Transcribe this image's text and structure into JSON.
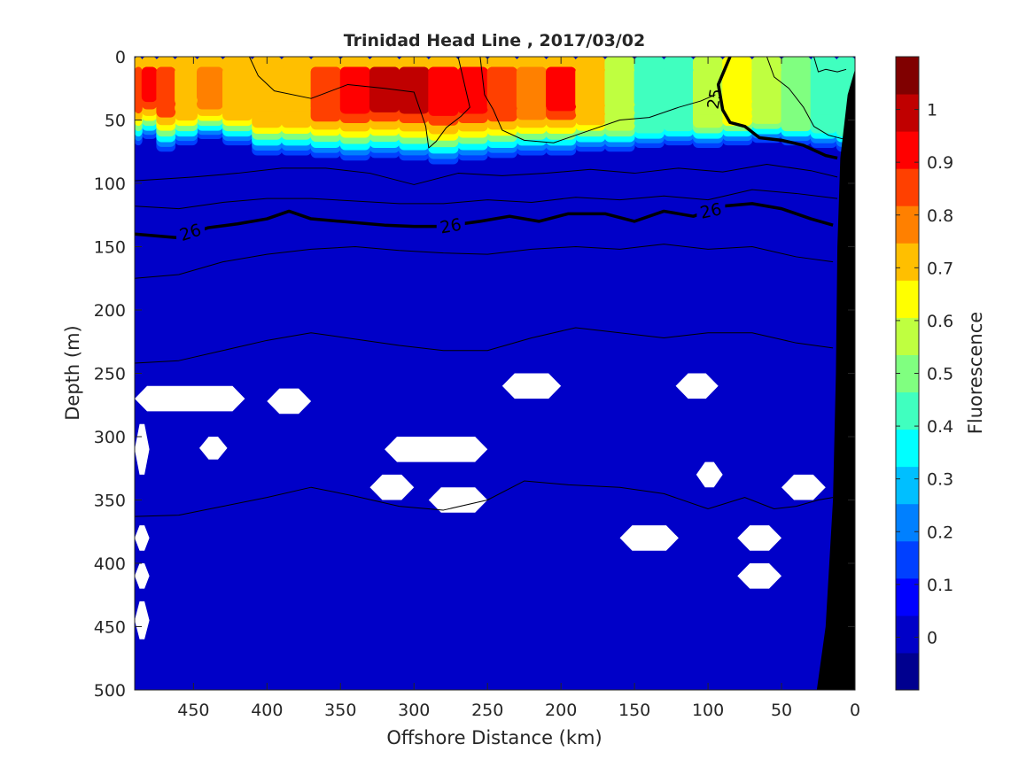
{
  "chart_data": {
    "type": "heatmap",
    "title": "Trinidad Head Line , 2017/03/02",
    "xlabel": "Offshore Distance (km)",
    "ylabel": "Depth (m)",
    "colorbar_label": "Fluorescence",
    "xlim": [
      490,
      0
    ],
    "ylim": [
      0,
      500
    ],
    "x_reversed": true,
    "y_reversed": true,
    "x_ticks": [
      "450",
      "400",
      "350",
      "300",
      "250",
      "200",
      "150",
      "100",
      "50",
      "0"
    ],
    "x_tick_values": [
      450,
      400,
      350,
      300,
      250,
      200,
      150,
      100,
      50,
      0
    ],
    "y_ticks": [
      "0",
      "50",
      "100",
      "150",
      "200",
      "250",
      "300",
      "350",
      "400",
      "450",
      "500"
    ],
    "y_tick_values": [
      0,
      50,
      100,
      150,
      200,
      250,
      300,
      350,
      400,
      450,
      500
    ],
    "colorbar_ticks": [
      "0",
      "0.1",
      "0.2",
      "0.3",
      "0.4",
      "0.5",
      "0.6",
      "0.7",
      "0.8",
      "0.9",
      "1"
    ],
    "colorbar_tick_values": [
      0,
      0.1,
      0.2,
      0.3,
      0.4,
      0.5,
      0.6,
      0.7,
      0.8,
      0.9,
      1
    ],
    "colorbar_range": [
      -0.1,
      1.1
    ],
    "colormap": [
      "#00008f",
      "#0000c8",
      "#0000ff",
      "#0040ff",
      "#0080ff",
      "#00bfff",
      "#00ffff",
      "#40ffbf",
      "#80ff80",
      "#bfff40",
      "#ffff00",
      "#ffbf00",
      "#ff8000",
      "#ff4000",
      "#ff0000",
      "#c00000",
      "#800000"
    ],
    "background_value": 0.03,
    "surface_layer": {
      "x": [
        490,
        480,
        470,
        455,
        440,
        420,
        400,
        380,
        360,
        340,
        320,
        300,
        280,
        260,
        240,
        220,
        200,
        180,
        160,
        140,
        120,
        100,
        80,
        60,
        40,
        20,
        5
      ],
      "values": [
        0.82,
        0.92,
        0.82,
        0.7,
        0.75,
        0.7,
        0.68,
        0.72,
        0.85,
        0.95,
        0.98,
        0.96,
        0.94,
        0.9,
        0.82,
        0.8,
        0.92,
        0.72,
        0.55,
        0.45,
        0.42,
        0.58,
        0.62,
        0.55,
        0.48,
        0.42,
        0.4
      ],
      "bottom_depth": [
        70,
        65,
        75,
        70,
        65,
        70,
        78,
        78,
        80,
        82,
        80,
        82,
        85,
        82,
        80,
        78,
        78,
        75,
        75,
        72,
        70,
        72,
        70,
        68,
        70,
        72,
        75
      ]
    },
    "density_contours": [
      {
        "label": "25",
        "bold": true,
        "points": [
          [
            85,
            0
          ],
          [
            93,
            22
          ],
          [
            90,
            42
          ],
          [
            85,
            52
          ],
          [
            75,
            55
          ],
          [
            65,
            64
          ],
          [
            50,
            66
          ],
          [
            35,
            70
          ],
          [
            20,
            78
          ],
          [
            12,
            80
          ]
        ]
      },
      {
        "label": "26",
        "bold": true,
        "points": [
          [
            490,
            140
          ],
          [
            460,
            143
          ],
          [
            440,
            135
          ],
          [
            420,
            132
          ],
          [
            400,
            128
          ],
          [
            385,
            122
          ],
          [
            370,
            128
          ],
          [
            350,
            130
          ],
          [
            320,
            133
          ],
          [
            300,
            134
          ],
          [
            280,
            134
          ],
          [
            255,
            130
          ],
          [
            235,
            126
          ],
          [
            215,
            130
          ],
          [
            195,
            124
          ],
          [
            170,
            124
          ],
          [
            150,
            130
          ],
          [
            130,
            122
          ],
          [
            110,
            126
          ],
          [
            90,
            118
          ],
          [
            70,
            116
          ],
          [
            50,
            120
          ],
          [
            30,
            128
          ],
          [
            15,
            133
          ]
        ]
      },
      {
        "label": "",
        "bold": false,
        "points": [
          [
            490,
            98
          ],
          [
            450,
            95
          ],
          [
            420,
            92
          ],
          [
            390,
            88
          ],
          [
            360,
            88
          ],
          [
            330,
            92
          ],
          [
            300,
            101
          ],
          [
            270,
            92
          ],
          [
            240,
            94
          ],
          [
            210,
            92
          ],
          [
            180,
            89
          ],
          [
            150,
            92
          ],
          [
            120,
            88
          ],
          [
            90,
            91
          ],
          [
            60,
            85
          ],
          [
            30,
            90
          ],
          [
            12,
            95
          ]
        ]
      },
      {
        "label": "",
        "bold": false,
        "points": [
          [
            490,
            118
          ],
          [
            460,
            120
          ],
          [
            430,
            115
          ],
          [
            400,
            112
          ],
          [
            370,
            112
          ],
          [
            340,
            114
          ],
          [
            310,
            116
          ],
          [
            280,
            116
          ],
          [
            250,
            113
          ],
          [
            220,
            115
          ],
          [
            190,
            111
          ],
          [
            160,
            113
          ],
          [
            130,
            110
          ],
          [
            100,
            113
          ],
          [
            70,
            105
          ],
          [
            40,
            108
          ],
          [
            12,
            112
          ]
        ]
      },
      {
        "label": "",
        "bold": false,
        "points": [
          [
            490,
            175
          ],
          [
            460,
            172
          ],
          [
            430,
            162
          ],
          [
            400,
            156
          ],
          [
            370,
            152
          ],
          [
            340,
            150
          ],
          [
            310,
            153
          ],
          [
            280,
            155
          ],
          [
            250,
            156
          ],
          [
            220,
            152
          ],
          [
            190,
            150
          ],
          [
            160,
            152
          ],
          [
            130,
            148
          ],
          [
            100,
            152
          ],
          [
            70,
            150
          ],
          [
            40,
            158
          ],
          [
            15,
            162
          ]
        ]
      },
      {
        "label": "",
        "bold": false,
        "points": [
          [
            490,
            242
          ],
          [
            460,
            240
          ],
          [
            430,
            232
          ],
          [
            400,
            224
          ],
          [
            370,
            218
          ],
          [
            340,
            223
          ],
          [
            310,
            228
          ],
          [
            280,
            232
          ],
          [
            250,
            232
          ],
          [
            220,
            222
          ],
          [
            190,
            214
          ],
          [
            160,
            218
          ],
          [
            130,
            222
          ],
          [
            100,
            218
          ],
          [
            70,
            218
          ],
          [
            40,
            226
          ],
          [
            15,
            230
          ]
        ]
      },
      {
        "label": "",
        "bold": false,
        "points": [
          [
            490,
            363
          ],
          [
            460,
            362
          ],
          [
            430,
            355
          ],
          [
            400,
            348
          ],
          [
            370,
            340
          ],
          [
            340,
            347
          ],
          [
            310,
            355
          ],
          [
            280,
            358
          ],
          [
            250,
            350
          ],
          [
            225,
            335
          ],
          [
            195,
            338
          ],
          [
            160,
            340
          ],
          [
            130,
            345
          ],
          [
            100,
            357
          ],
          [
            75,
            348
          ],
          [
            55,
            357
          ],
          [
            40,
            355
          ],
          [
            25,
            350
          ],
          [
            15,
            348
          ]
        ]
      },
      {
        "label": "",
        "bold": false,
        "points": [
          [
            412,
            0
          ],
          [
            406,
            15
          ],
          [
            395,
            27
          ],
          [
            370,
            33
          ],
          [
            345,
            22
          ],
          [
            320,
            25
          ],
          [
            300,
            28
          ],
          [
            292,
            55
          ],
          [
            290,
            72
          ],
          [
            285,
            67
          ],
          [
            278,
            56
          ],
          [
            268,
            47
          ],
          [
            262,
            40
          ],
          [
            270,
            0
          ]
        ]
      },
      {
        "label": "",
        "bold": false,
        "points": [
          [
            255,
            0
          ],
          [
            252,
            30
          ],
          [
            246,
            42
          ],
          [
            240,
            58
          ],
          [
            225,
            66
          ],
          [
            205,
            68
          ],
          [
            180,
            58
          ],
          [
            160,
            50
          ],
          [
            140,
            48
          ],
          [
            120,
            40
          ],
          [
            105,
            35
          ],
          [
            95,
            30
          ]
        ]
      },
      {
        "label": "",
        "bold": false,
        "points": [
          [
            28,
            0
          ],
          [
            25,
            12
          ],
          [
            20,
            10
          ],
          [
            12,
            12
          ],
          [
            6,
            10
          ]
        ]
      },
      {
        "label": "",
        "bold": false,
        "points": [
          [
            60,
            0
          ],
          [
            55,
            16
          ],
          [
            45,
            25
          ],
          [
            35,
            40
          ],
          [
            28,
            55
          ],
          [
            18,
            62
          ],
          [
            8,
            65
          ]
        ]
      }
    ],
    "missing_data_regions": [
      {
        "x": [
          415,
          490
        ],
        "depth": [
          260,
          280
        ]
      },
      {
        "x": [
          370,
          400
        ],
        "depth": [
          262,
          282
        ]
      },
      {
        "x": [
          480,
          490
        ],
        "depth": [
          290,
          330
        ]
      },
      {
        "x": [
          427,
          446
        ],
        "depth": [
          300,
          318
        ]
      },
      {
        "x": [
          250,
          320
        ],
        "depth": [
          300,
          320
        ]
      },
      {
        "x": [
          300,
          330
        ],
        "depth": [
          330,
          350
        ]
      },
      {
        "x": [
          250,
          290
        ],
        "depth": [
          340,
          360
        ]
      },
      {
        "x": [
          200,
          240
        ],
        "depth": [
          250,
          270
        ]
      },
      {
        "x": [
          93,
          122
        ],
        "depth": [
          250,
          270
        ]
      },
      {
        "x": [
          90,
          108
        ],
        "depth": [
          320,
          340
        ]
      },
      {
        "x": [
          20,
          50
        ],
        "depth": [
          330,
          350
        ]
      },
      {
        "x": [
          120,
          160
        ],
        "depth": [
          370,
          390
        ]
      },
      {
        "x": [
          50,
          80
        ],
        "depth": [
          370,
          390
        ]
      },
      {
        "x": [
          50,
          80
        ],
        "depth": [
          400,
          420
        ]
      },
      {
        "x": [
          480,
          490
        ],
        "depth": [
          370,
          390
        ]
      },
      {
        "x": [
          480,
          490
        ],
        "depth": [
          400,
          420
        ]
      },
      {
        "x": [
          480,
          490
        ],
        "depth": [
          430,
          460
        ]
      }
    ],
    "seafloor": {
      "points": [
        [
          0,
          10
        ],
        [
          0,
          500
        ],
        [
          26,
          500
        ],
        [
          20,
          450
        ],
        [
          15,
          350
        ],
        [
          13,
          250
        ],
        [
          12,
          150
        ],
        [
          10,
          80
        ],
        [
          5,
          30
        ]
      ]
    },
    "grid": false,
    "legend": "colorbar-right"
  }
}
